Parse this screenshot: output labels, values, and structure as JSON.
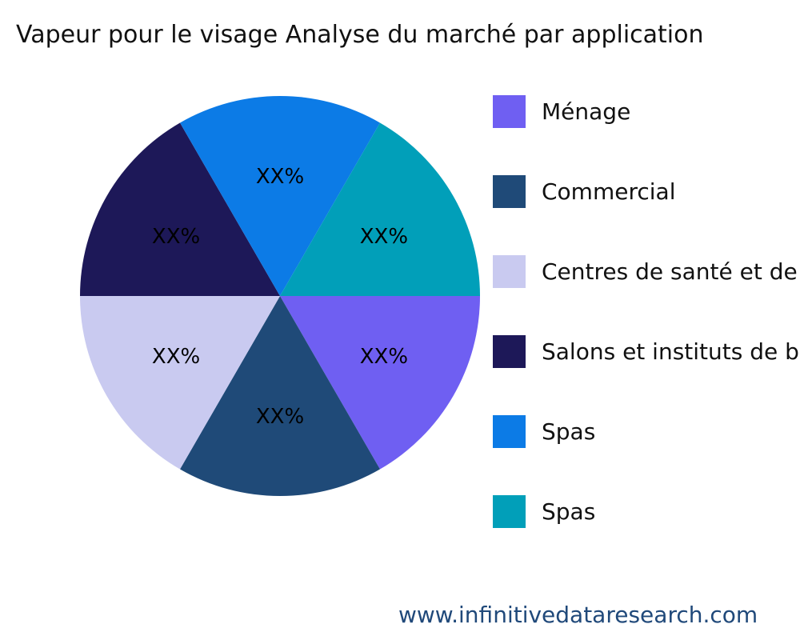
{
  "chart_data": {
    "type": "pie",
    "title": "Vapeur pour le visage Analyse du marché par application",
    "categories": [
      "Ménage",
      "Commercial",
      "Centres de santé et de",
      "Salons et instituts de b",
      "Spas",
      "Spas"
    ],
    "values": [
      1,
      1,
      1,
      1,
      1,
      1
    ],
    "data_labels": [
      "XX%",
      "XX%",
      "XX%",
      "XX%",
      "XX%",
      "XX%"
    ],
    "colors": [
      "#6f5ff2",
      "#1f4a78",
      "#c9caf0",
      "#1d1858",
      "#0c7be6",
      "#019fb9"
    ],
    "legend_position": "right"
  },
  "footer": "www.infinitivedataresearch.com"
}
